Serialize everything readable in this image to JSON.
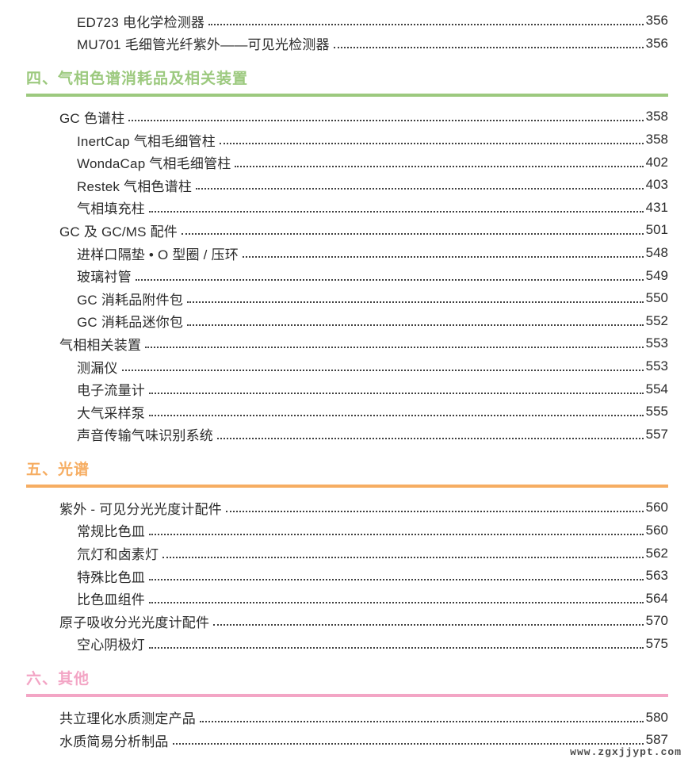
{
  "page": {
    "watermark": "www.zgxjjypt.com"
  },
  "colors": {
    "section4": "#9cc97e",
    "section5": "#f6ad62",
    "section6": "#f3a5c5",
    "entry_text": "#2b2b2b",
    "dot_leader": "#3f3f3f"
  },
  "toc": {
    "leading_entries": [
      {
        "label": "ED723 电化学检测器",
        "page": "356",
        "level": 2
      },
      {
        "label": "MU701 毛细管光纤紫外——可见光检测器",
        "page": "356",
        "level": 2
      }
    ],
    "sections": [
      {
        "title": "四、气相色谱消耗品及相关装置",
        "color": "#9cc97e",
        "entries": [
          {
            "label": "GC 色谱柱",
            "page": "358",
            "level": 1
          },
          {
            "label": "InertCap 气相毛细管柱",
            "page": "358",
            "level": 2
          },
          {
            "label": "WondaCap 气相毛细管柱",
            "page": "402",
            "level": 2
          },
          {
            "label": "Restek 气相色谱柱",
            "page": "403",
            "level": 2
          },
          {
            "label": "气相填充柱",
            "page": "431",
            "level": 2
          },
          {
            "label": "GC 及 GC/MS 配件",
            "page": "501",
            "level": 1
          },
          {
            "label": "进样口隔垫 • O 型圈 / 压环",
            "page": "548",
            "level": 2
          },
          {
            "label": "玻璃衬管",
            "page": "549",
            "level": 2
          },
          {
            "label": "GC 消耗品附件包",
            "page": "550",
            "level": 2
          },
          {
            "label": "GC 消耗品迷你包",
            "page": "552",
            "level": 2
          },
          {
            "label": "气相相关装置",
            "page": "553",
            "level": 1
          },
          {
            "label": "测漏仪",
            "page": "553",
            "level": 2
          },
          {
            "label": "电子流量计",
            "page": "554",
            "level": 2
          },
          {
            "label": "大气采样泵",
            "page": "555",
            "level": 2
          },
          {
            "label": "声音传输气味识别系统",
            "page": "557",
            "level": 2
          }
        ]
      },
      {
        "title": "五、光谱",
        "color": "#f6ad62",
        "entries": [
          {
            "label": "紫外 - 可见分光光度计配件",
            "page": "560",
            "level": 1
          },
          {
            "label": "常规比色皿",
            "page": "560",
            "level": 2
          },
          {
            "label": "氘灯和卤素灯",
            "page": "562",
            "level": 2
          },
          {
            "label": "特殊比色皿",
            "page": "563",
            "level": 2
          },
          {
            "label": "比色皿组件",
            "page": "564",
            "level": 2
          },
          {
            "label": "原子吸收分光光度计配件",
            "page": "570",
            "level": 1
          },
          {
            "label": "空心阴极灯",
            "page": "575",
            "level": 2
          }
        ]
      },
      {
        "title": "六、其他",
        "color": "#f3a5c5",
        "entries": [
          {
            "label": "共立理化水质测定产品",
            "page": "580",
            "level": 1
          },
          {
            "label": "水质简易分析制品",
            "page": "587",
            "level": 1
          }
        ]
      }
    ]
  }
}
